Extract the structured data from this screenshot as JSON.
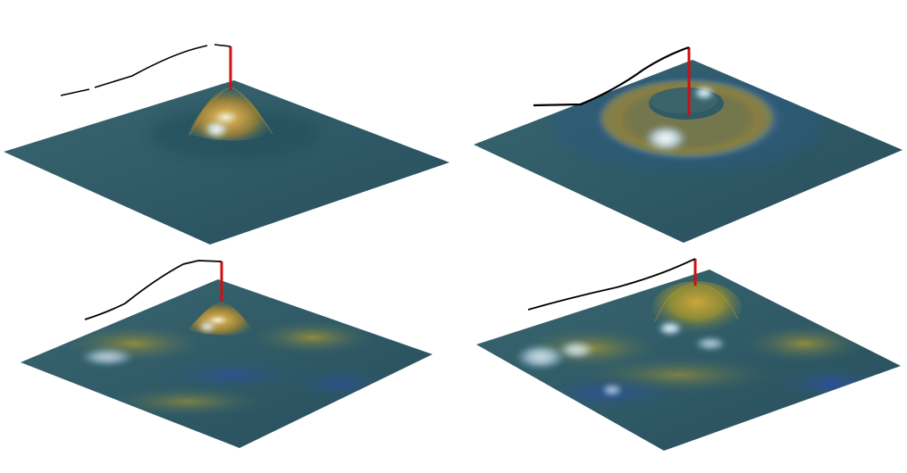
{
  "panels": [
    {
      "id": "top-left",
      "shape": "single central peak with shallow ring"
    },
    {
      "id": "top-right",
      "shape": "torus ring around central spike"
    },
    {
      "id": "bottom-left",
      "shape": "small central peak over undulating field"
    },
    {
      "id": "bottom-right",
      "shape": "broad central mound over undulating field"
    }
  ],
  "colors": {
    "background": "#ffffff",
    "surface_base": "#2f5a66",
    "surface_warm": "#a67c2a",
    "surface_highlight": "#e8f7ff",
    "surface_valley": "#2a4f8e",
    "spike": "#d01010",
    "curve": "#000000"
  }
}
